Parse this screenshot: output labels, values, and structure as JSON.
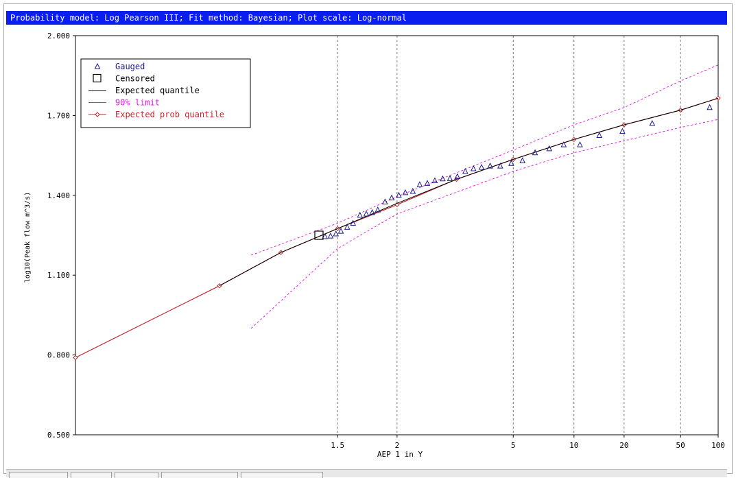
{
  "window": {
    "title": "Probability model: Log Pearson III; Fit method: Bayesian; Plot scale: Log-normal"
  },
  "colors": {
    "titlebar": "#0a1ef0",
    "gauged": "#1c1c8c",
    "censored": "#000000",
    "expected_quantile": "#000000",
    "limit_90": "#e020e0",
    "expected_prob_quantile": "#c0262c",
    "grid": "#555555"
  },
  "chart_data": {
    "type": "scatter",
    "title": "",
    "xlabel": "AEP 1 in Y",
    "ylabel": "log10(Peak flow m^3/s)",
    "x_scale": "log-normal probability (AEP 1 in Y)",
    "ylim": [
      0.5,
      2.0
    ],
    "yticks": [
      "0.500",
      "0.800",
      "1.100",
      "1.400",
      "1.700",
      "2.000"
    ],
    "xticks": [
      "1.5",
      "2",
      "5",
      "10",
      "20",
      "50",
      "100"
    ],
    "xgrid": [
      1.5,
      2,
      5,
      10,
      20,
      50
    ],
    "legend_position": "top-left",
    "legend": [
      {
        "label": "Gauged",
        "symbol": "triangle"
      },
      {
        "label": "Censored",
        "symbol": "square"
      },
      {
        "label": "Expected quantile",
        "symbol": "line"
      },
      {
        "label": "90% limit",
        "symbol": "line"
      },
      {
        "label": "Expected prob quantile",
        "symbol": "line-diamond"
      }
    ],
    "series": [
      {
        "name": "Gauged",
        "type": "scatter",
        "points": [
          [
            1.43,
            1.245
          ],
          [
            1.46,
            1.247
          ],
          [
            1.49,
            1.255
          ],
          [
            1.52,
            1.265
          ],
          [
            1.56,
            1.28
          ],
          [
            1.6,
            1.295
          ],
          [
            1.65,
            1.325
          ],
          [
            1.7,
            1.33
          ],
          [
            1.75,
            1.335
          ],
          [
            1.8,
            1.345
          ],
          [
            1.87,
            1.375
          ],
          [
            1.94,
            1.39
          ],
          [
            2.02,
            1.4
          ],
          [
            2.1,
            1.41
          ],
          [
            2.2,
            1.415
          ],
          [
            2.3,
            1.44
          ],
          [
            2.42,
            1.445
          ],
          [
            2.55,
            1.455
          ],
          [
            2.7,
            1.462
          ],
          [
            2.85,
            1.463
          ],
          [
            3.02,
            1.47
          ],
          [
            3.22,
            1.49
          ],
          [
            3.45,
            1.5
          ],
          [
            3.7,
            1.505
          ],
          [
            4.0,
            1.51
          ],
          [
            4.4,
            1.51
          ],
          [
            4.9,
            1.52
          ],
          [
            5.5,
            1.53
          ],
          [
            6.3,
            1.56
          ],
          [
            7.4,
            1.575
          ],
          [
            8.8,
            1.59
          ],
          [
            10.8,
            1.59
          ],
          [
            14.0,
            1.625
          ],
          [
            19.5,
            1.64
          ],
          [
            31.0,
            1.67
          ],
          [
            85.0,
            1.73
          ]
        ]
      },
      {
        "name": "Censored",
        "type": "scatter",
        "points": [
          [
            1.4,
            1.25
          ]
        ]
      },
      {
        "name": "Expected quantile",
        "type": "line",
        "points": [
          [
            1.11,
            1.06
          ],
          [
            1.25,
            1.185
          ],
          [
            1.5,
            1.275
          ],
          [
            2,
            1.37
          ],
          [
            3,
            1.46
          ],
          [
            5,
            1.535
          ],
          [
            10,
            1.61
          ],
          [
            20,
            1.665
          ],
          [
            50,
            1.72
          ],
          [
            100,
            1.765
          ]
        ]
      },
      {
        "name": "90% limit (upper)",
        "type": "line",
        "points": [
          [
            1.17,
            1.175
          ],
          [
            1.5,
            1.295
          ],
          [
            2,
            1.395
          ],
          [
            5,
            1.57
          ],
          [
            10,
            1.665
          ],
          [
            20,
            1.73
          ],
          [
            50,
            1.83
          ],
          [
            100,
            1.89
          ]
        ]
      },
      {
        "name": "90% limit (lower)",
        "type": "line",
        "points": [
          [
            1.17,
            0.9
          ],
          [
            1.5,
            1.2
          ],
          [
            2,
            1.33
          ],
          [
            5,
            1.49
          ],
          [
            10,
            1.56
          ],
          [
            20,
            1.605
          ],
          [
            50,
            1.655
          ],
          [
            100,
            1.685
          ]
        ]
      },
      {
        "name": "Expected prob quantile",
        "type": "line",
        "points": [
          [
            1.01,
            0.79
          ],
          [
            1.11,
            1.06
          ],
          [
            1.25,
            1.185
          ],
          [
            1.5,
            1.275
          ],
          [
            2,
            1.365
          ],
          [
            3,
            1.46
          ],
          [
            5,
            1.535
          ],
          [
            10,
            1.61
          ],
          [
            20,
            1.665
          ],
          [
            50,
            1.72
          ],
          [
            100,
            1.765
          ]
        ]
      }
    ]
  }
}
